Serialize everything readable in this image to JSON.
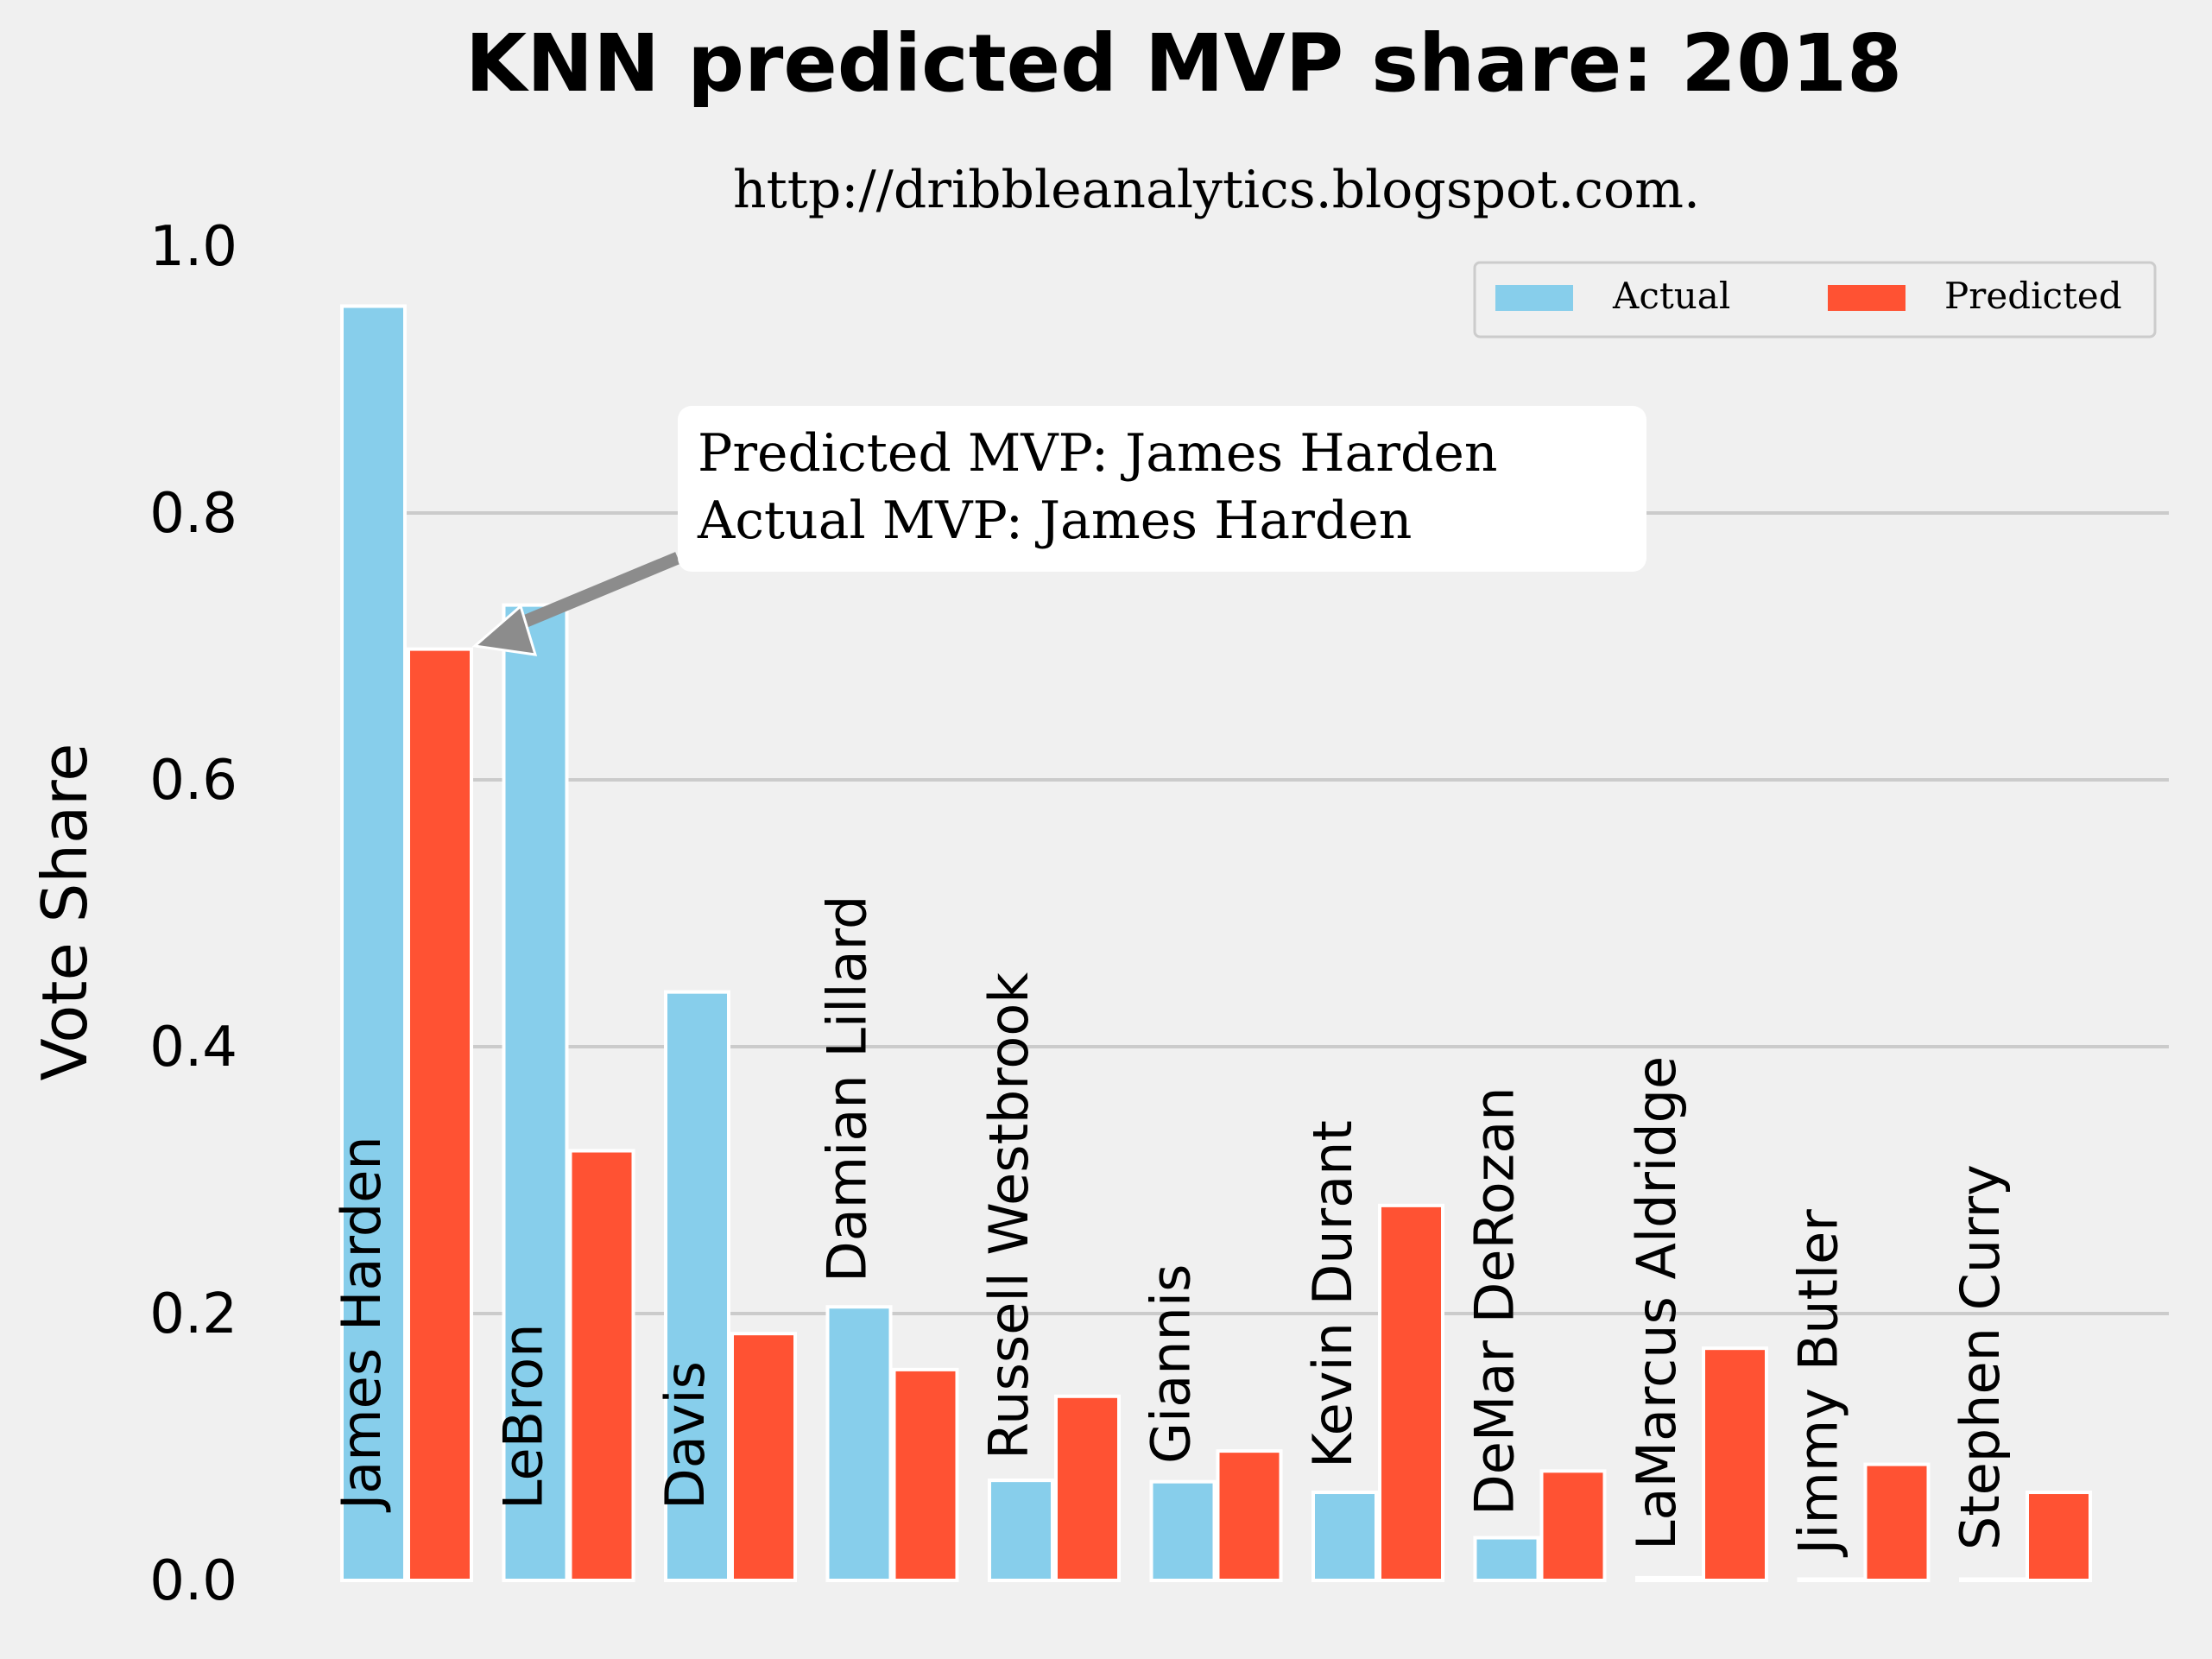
{
  "chart_data": {
    "type": "bar",
    "title": "KNN predicted MVP share: 2018",
    "subtitle": "http://dribbleanalytics.blogspot.com.",
    "xlabel": "",
    "ylabel": "Vote Share",
    "ylim": [
      0,
      1.0
    ],
    "yticks": [
      "0.0",
      "0.2",
      "0.4",
      "0.6",
      "0.8",
      "1.0"
    ],
    "grid": "horizontal",
    "legend_position": "top-right",
    "categories": [
      "James Harden",
      "LeBron",
      "Davis",
      "Damian Lillard",
      "Russell Westbrook",
      "Giannis",
      "Kevin Durant",
      "DeMar DeRozan",
      "LaMarcus Aldridge",
      "Jimmy Butler",
      "Stephen Curry"
    ],
    "series": [
      {
        "name": "Actual",
        "color": "#87ceeb",
        "values": [
          0.955,
          0.731,
          0.441,
          0.205,
          0.075,
          0.074,
          0.066,
          0.032,
          0.002,
          0.001,
          0.001
        ]
      },
      {
        "name": "Predicted",
        "color": "#ff5233",
        "values": [
          0.698,
          0.322,
          0.185,
          0.158,
          0.138,
          0.097,
          0.281,
          0.082,
          0.174,
          0.087,
          0.066
        ]
      }
    ],
    "annotation": {
      "line1": "Predicted MVP: James Harden",
      "line2": "Actual MVP: James Harden",
      "arrow_color": "#8c8c8c"
    }
  }
}
